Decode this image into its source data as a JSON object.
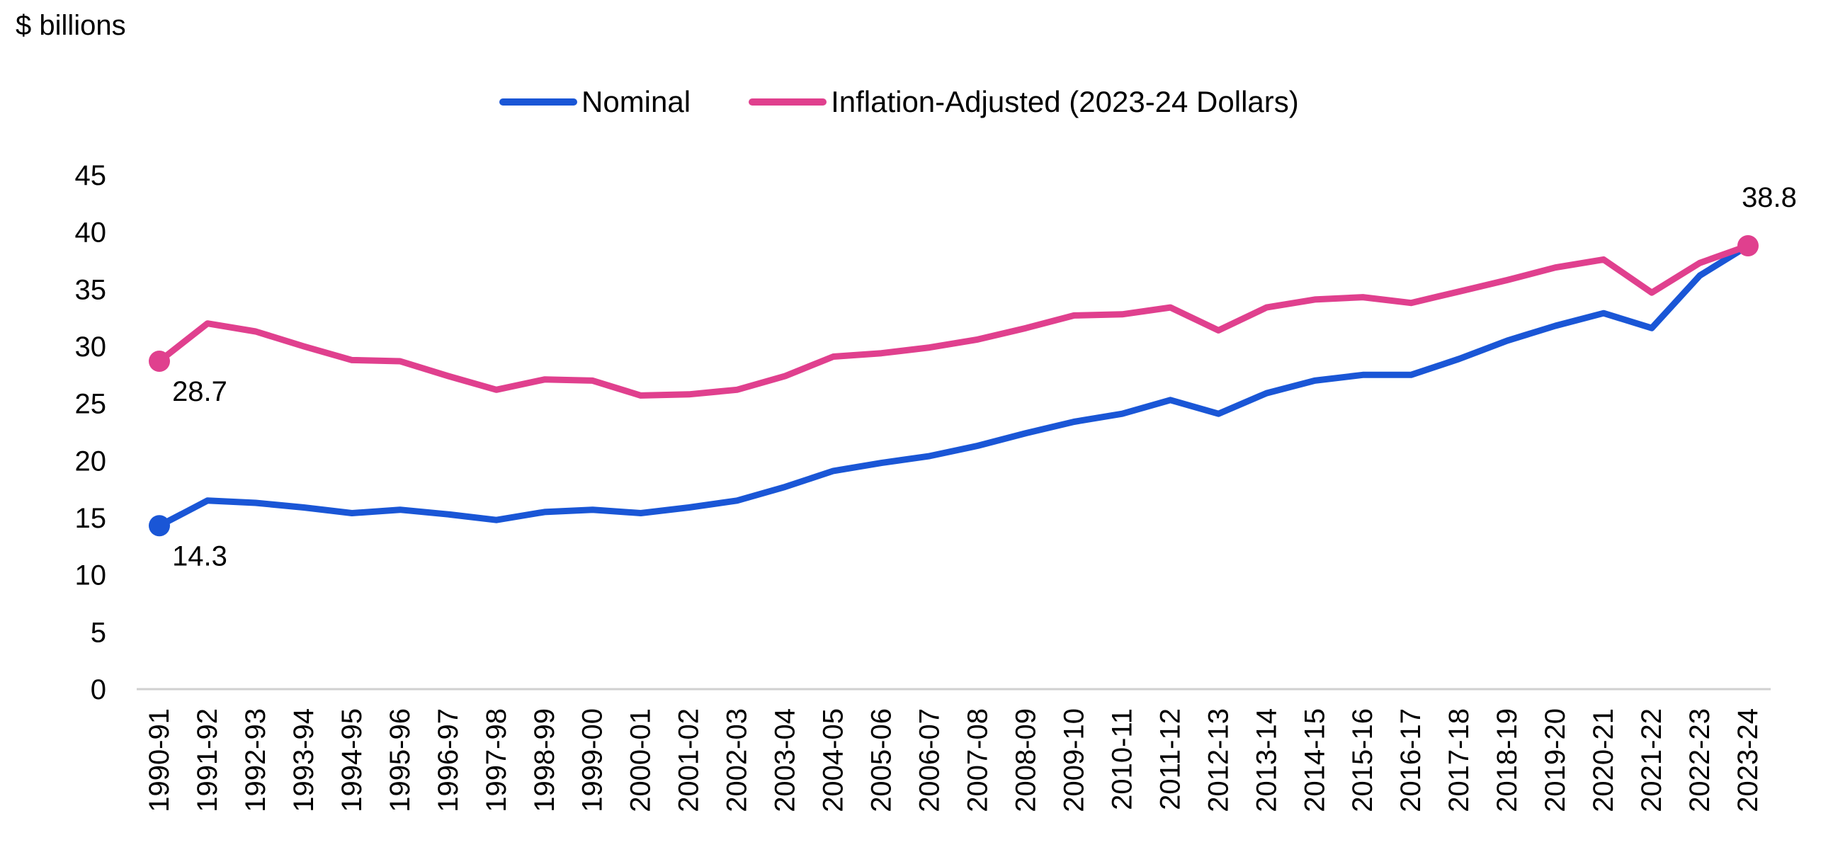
{
  "chart_data": {
    "type": "line",
    "ylabel": "$ billions",
    "ylim": [
      0,
      45
    ],
    "yticks": [
      0,
      5,
      10,
      15,
      20,
      25,
      30,
      35,
      40,
      45
    ],
    "categories": [
      "1990-91",
      "1991-92",
      "1992-93",
      "1993-94",
      "1994-95",
      "1995-96",
      "1996-97",
      "1997-98",
      "1998-99",
      "1999-00",
      "2000-01",
      "2001-02",
      "2002-03",
      "2003-04",
      "2004-05",
      "2005-06",
      "2006-07",
      "2007-08",
      "2008-09",
      "2009-10",
      "2010-11",
      "2011-12",
      "2012-13",
      "2013-14",
      "2014-15",
      "2015-16",
      "2016-17",
      "2017-18",
      "2018-19",
      "2019-20",
      "2020-21",
      "2021-22",
      "2022-23",
      "2023-24"
    ],
    "series": [
      {
        "name": "Nominal",
        "color": "#1a56d6",
        "values": [
          14.3,
          16.5,
          16.3,
          15.9,
          15.4,
          15.7,
          15.3,
          14.8,
          15.5,
          15.7,
          15.4,
          15.9,
          16.5,
          17.7,
          19.1,
          19.8,
          20.4,
          21.3,
          22.4,
          23.4,
          24.1,
          25.3,
          24.1,
          25.9,
          27.0,
          27.5,
          27.5,
          28.9,
          30.5,
          31.8,
          32.9,
          31.6,
          36.2,
          38.8
        ],
        "labels": [
          {
            "index": 0,
            "text": "14.3"
          }
        ]
      },
      {
        "name": "Inflation-Adjusted (2023-24 Dollars)",
        "color": "#e0408e",
        "values": [
          28.7,
          32.0,
          31.3,
          30.0,
          28.8,
          28.7,
          27.4,
          26.2,
          27.1,
          27.0,
          25.7,
          25.8,
          26.2,
          27.4,
          29.1,
          29.4,
          29.9,
          30.6,
          31.6,
          32.7,
          32.8,
          33.4,
          31.4,
          33.4,
          34.1,
          34.3,
          33.8,
          34.8,
          35.8,
          36.9,
          37.6,
          34.7,
          37.3,
          38.8
        ],
        "labels": [
          {
            "index": 0,
            "text": "28.7"
          },
          {
            "index": 33,
            "text": "38.8"
          }
        ]
      }
    ],
    "grid": false,
    "legend": "top-center"
  }
}
